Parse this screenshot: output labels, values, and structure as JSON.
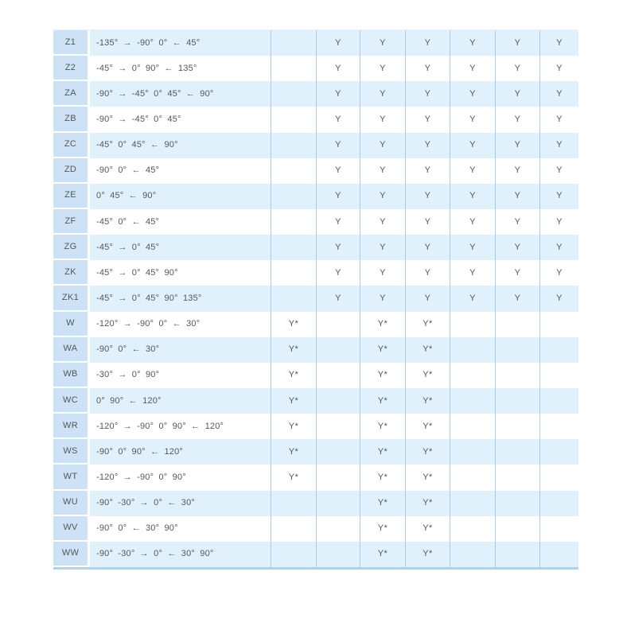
{
  "colors": {
    "row_stripe": "#e1f1fb",
    "code_cell_background": "#cde3f5",
    "grid_line": "#a7cde9",
    "table_bottom_border": "#aed3ec",
    "text": "#51575c"
  },
  "table": {
    "rows": [
      {
        "code": "Z1",
        "angles": "-135° → -90° 0° ← 45°",
        "marks": [
          "",
          "Y",
          "Y",
          "Y",
          "Y",
          "Y",
          "Y"
        ]
      },
      {
        "code": "Z2",
        "angles": "-45° → 0° 90° ← 135°",
        "marks": [
          "",
          "Y",
          "Y",
          "Y",
          "Y",
          "Y",
          "Y"
        ]
      },
      {
        "code": "ZA",
        "angles": "-90° → -45° 0° 45° ← 90°",
        "marks": [
          "",
          "Y",
          "Y",
          "Y",
          "Y",
          "Y",
          "Y"
        ]
      },
      {
        "code": "ZB",
        "angles": "-90° → -45° 0° 45°",
        "marks": [
          "",
          "Y",
          "Y",
          "Y",
          "Y",
          "Y",
          "Y"
        ]
      },
      {
        "code": "ZC",
        "angles": "-45° 0° 45° ← 90°",
        "marks": [
          "",
          "Y",
          "Y",
          "Y",
          "Y",
          "Y",
          "Y"
        ]
      },
      {
        "code": "ZD",
        "angles": "-90° 0° ← 45°",
        "marks": [
          "",
          "Y",
          "Y",
          "Y",
          "Y",
          "Y",
          "Y"
        ]
      },
      {
        "code": "ZE",
        "angles": "0° 45° ← 90°",
        "marks": [
          "",
          "Y",
          "Y",
          "Y",
          "Y",
          "Y",
          "Y"
        ]
      },
      {
        "code": "ZF",
        "angles": "-45° 0° ← 45°",
        "marks": [
          "",
          "Y",
          "Y",
          "Y",
          "Y",
          "Y",
          "Y"
        ]
      },
      {
        "code": "ZG",
        "angles": "-45° → 0° 45°",
        "marks": [
          "",
          "Y",
          "Y",
          "Y",
          "Y",
          "Y",
          "Y"
        ]
      },
      {
        "code": "ZK",
        "angles": "-45° → 0° 45° 90°",
        "marks": [
          "",
          "Y",
          "Y",
          "Y",
          "Y",
          "Y",
          "Y"
        ]
      },
      {
        "code": "ZK1",
        "angles": "-45° → 0° 45° 90° 135°",
        "marks": [
          "",
          "Y",
          "Y",
          "Y",
          "Y",
          "Y",
          "Y"
        ]
      },
      {
        "code": "W",
        "angles": "-120° → -90° 0° ← 30°",
        "marks": [
          "Y*",
          "",
          "Y*",
          "Y*",
          "",
          "",
          ""
        ]
      },
      {
        "code": "WA",
        "angles": "-90° 0° ← 30°",
        "marks": [
          "Y*",
          "",
          "Y*",
          "Y*",
          "",
          "",
          ""
        ]
      },
      {
        "code": "WB",
        "angles": "-30° → 0° 90°",
        "marks": [
          "Y*",
          "",
          "Y*",
          "Y*",
          "",
          "",
          ""
        ]
      },
      {
        "code": "WC",
        "angles": "0° 90° ← 120°",
        "marks": [
          "Y*",
          "",
          "Y*",
          "Y*",
          "",
          "",
          ""
        ]
      },
      {
        "code": "WR",
        "angles": "-120° → -90° 0° 90° ← 120°",
        "marks": [
          "Y*",
          "",
          "Y*",
          "Y*",
          "",
          "",
          ""
        ]
      },
      {
        "code": "WS",
        "angles": "-90° 0° 90° ← 120°",
        "marks": [
          "Y*",
          "",
          "Y*",
          "Y*",
          "",
          "",
          ""
        ]
      },
      {
        "code": "WT",
        "angles": "-120° → -90° 0° 90°",
        "marks": [
          "Y*",
          "",
          "Y*",
          "Y*",
          "",
          "",
          ""
        ]
      },
      {
        "code": "WU",
        "angles": "-90° -30° → 0° ← 30°",
        "marks": [
          "",
          "",
          "Y*",
          "Y*",
          "",
          "",
          ""
        ]
      },
      {
        "code": "WV",
        "angles": "-90° 0° ← 30° 90°",
        "marks": [
          "",
          "",
          "Y*",
          "Y*",
          "",
          "",
          ""
        ]
      },
      {
        "code": "WW",
        "angles": "-90° -30° → 0° ← 30° 90°",
        "marks": [
          "",
          "",
          "Y*",
          "Y*",
          "",
          "",
          ""
        ]
      }
    ]
  }
}
